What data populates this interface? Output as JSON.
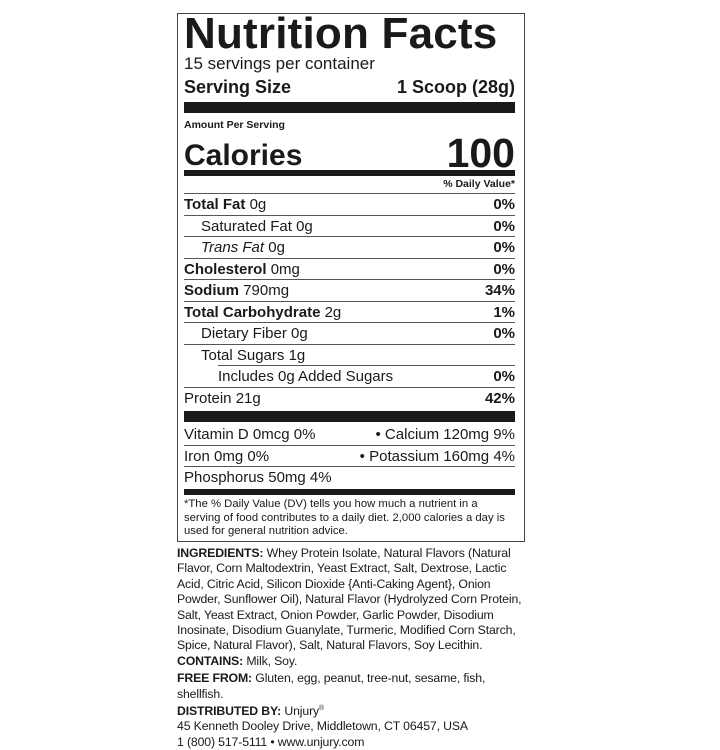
{
  "label": {
    "title": "Nutrition Facts",
    "servings_per_container": "15 servings per container",
    "serving_size_label": "Serving Size",
    "serving_size_value": "1 Scoop (28g)",
    "amount_per_serving": "Amount Per Serving",
    "calories_label": "Calories",
    "calories_value": "100",
    "daily_value_header": "% Daily Value*",
    "nutrients": [
      {
        "name": "Total Fat",
        "amount": "0g",
        "dv": "0%"
      },
      {
        "name": "Saturated Fat",
        "amount": "0g",
        "dv": "0%"
      },
      {
        "name": "Trans Fat",
        "amount": "0g",
        "dv": "0%"
      },
      {
        "name": "Cholesterol",
        "amount": "0mg",
        "dv": "0%"
      },
      {
        "name": "Sodium",
        "amount": "790mg",
        "dv": "34%"
      },
      {
        "name": "Total Carbohydrate",
        "amount": "2g",
        "dv": "1%"
      },
      {
        "name": "Dietary Fiber",
        "amount": "0g",
        "dv": "0%"
      },
      {
        "name": "Total Sugars",
        "amount": "1g",
        "dv": ""
      },
      {
        "name": "Includes 0g Added Sugars",
        "amount": "",
        "dv": "0%"
      },
      {
        "name": "Protein",
        "amount": "21g",
        "dv": "42%"
      }
    ],
    "micronutrients": [
      {
        "left": "Vitamin D 0mcg 0%",
        "right": "• Calcium 120mg 9%"
      },
      {
        "left": "Iron 0mg 0%",
        "right": "• Potassium 160mg 4%"
      },
      {
        "left": "Phosphorus 50mg 4%",
        "right": ""
      }
    ],
    "footnote": "*The % Daily Value (DV) tells you how much a nutrient in a serving of food contributes to a daily diet. 2,000 calories a day is used for general nutrition advice."
  },
  "ingredients": {
    "label": "INGREDIENTS:",
    "text": "Whey Protein Isolate, Natural Flavors (Natural Flavor, Corn Maltodextrin, Yeast Extract, Salt, Dextrose, Lactic Acid, Citric Acid, Silicon Dioxide {Anti-Caking Agent}, Onion Powder, Sunflower Oil), Natural Flavor (Hydrolyzed Corn Protein, Salt, Yeast Extract, Onion Powder, Garlic Powder, Disodium Inosinate, Disodium Guanylate, Turmeric, Modified Corn Starch, Spice, Natural Flavor), Salt, Natural Flavors, Soy Lecithin.",
    "contains_label": "CONTAINS:",
    "contains": "Milk, Soy.",
    "free_from_label": "FREE FROM:",
    "free_from": "Gluten, egg, peanut, tree-nut, sesame, fish, shellfish.",
    "distributed_label": "DISTRIBUTED BY:",
    "distributor": "Unjury",
    "registered": "®",
    "address": "45 Kenneth Dooley Drive, Middletown, CT 06457, USA",
    "contact": "1 (800) 517-5111 • www.unjury.com"
  }
}
